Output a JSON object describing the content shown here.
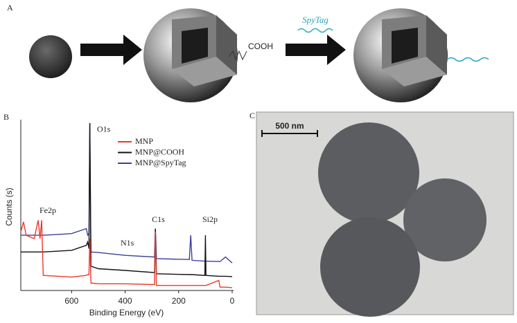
{
  "panels": {
    "a": "A",
    "b": "B",
    "c": "C"
  },
  "diagram": {
    "group_label": "COOH",
    "peptide_label": "SpyTag"
  },
  "micrograph": {
    "scale_bar": "500 nm"
  },
  "chart_data": {
    "type": "line",
    "xlabel": "Binding Energy (eV)",
    "ylabel": "Counts (s)",
    "xlim": [
      790,
      0
    ],
    "xticks": [
      600,
      400,
      200,
      0
    ],
    "ylim": [
      0,
      100
    ],
    "legend": "upper right",
    "x": [
      790,
      780,
      770,
      740,
      725,
      718,
      712,
      706,
      650,
      600,
      545,
      540,
      535,
      532,
      528,
      500,
      400,
      290,
      287,
      283,
      160,
      155,
      150,
      102,
      100,
      98,
      50,
      45,
      25,
      0
    ],
    "series": [
      {
        "name": "MNP",
        "color": "#e8392d",
        "values": [
          35,
          41,
          33,
          31,
          42,
          31,
          42,
          9,
          8.5,
          8,
          9,
          9.5,
          9.5,
          31,
          4.5,
          4,
          4,
          3.5,
          35,
          3,
          3,
          3,
          3,
          3,
          3,
          3,
          6,
          2,
          2,
          1.7
        ]
      },
      {
        "name": "MNP@COOH",
        "color": "#111111",
        "values": [
          23,
          23,
          23,
          23,
          23,
          23,
          23,
          23,
          23.5,
          24,
          27,
          29,
          25,
          100,
          14.5,
          13,
          12,
          10.7,
          37,
          10,
          9.5,
          9.5,
          9.5,
          9,
          33,
          9,
          8.5,
          8.5,
          8.5,
          8.3
        ]
      },
      {
        "name": "MNP@SpyTag",
        "color": "#3b3f9c",
        "values": [
          33,
          33,
          33,
          33,
          33,
          33,
          33,
          33,
          33.5,
          34,
          37,
          33,
          34,
          100,
          23,
          22.7,
          21,
          20,
          37,
          19,
          18.5,
          33,
          18,
          17.5,
          17.5,
          17.5,
          17.3,
          17.3,
          20,
          16.5
        ]
      }
    ],
    "annotations": [
      {
        "text": "O1s",
        "x": 480,
        "y": 96
      },
      {
        "text": "Fe2p",
        "x": 689,
        "y": 47.5
      },
      {
        "text": "N1s",
        "x": 392,
        "y": 28
      },
      {
        "text": "C1s",
        "x": 276,
        "y": 42
      },
      {
        "text": "Si2p",
        "x": 83,
        "y": 42
      }
    ]
  }
}
